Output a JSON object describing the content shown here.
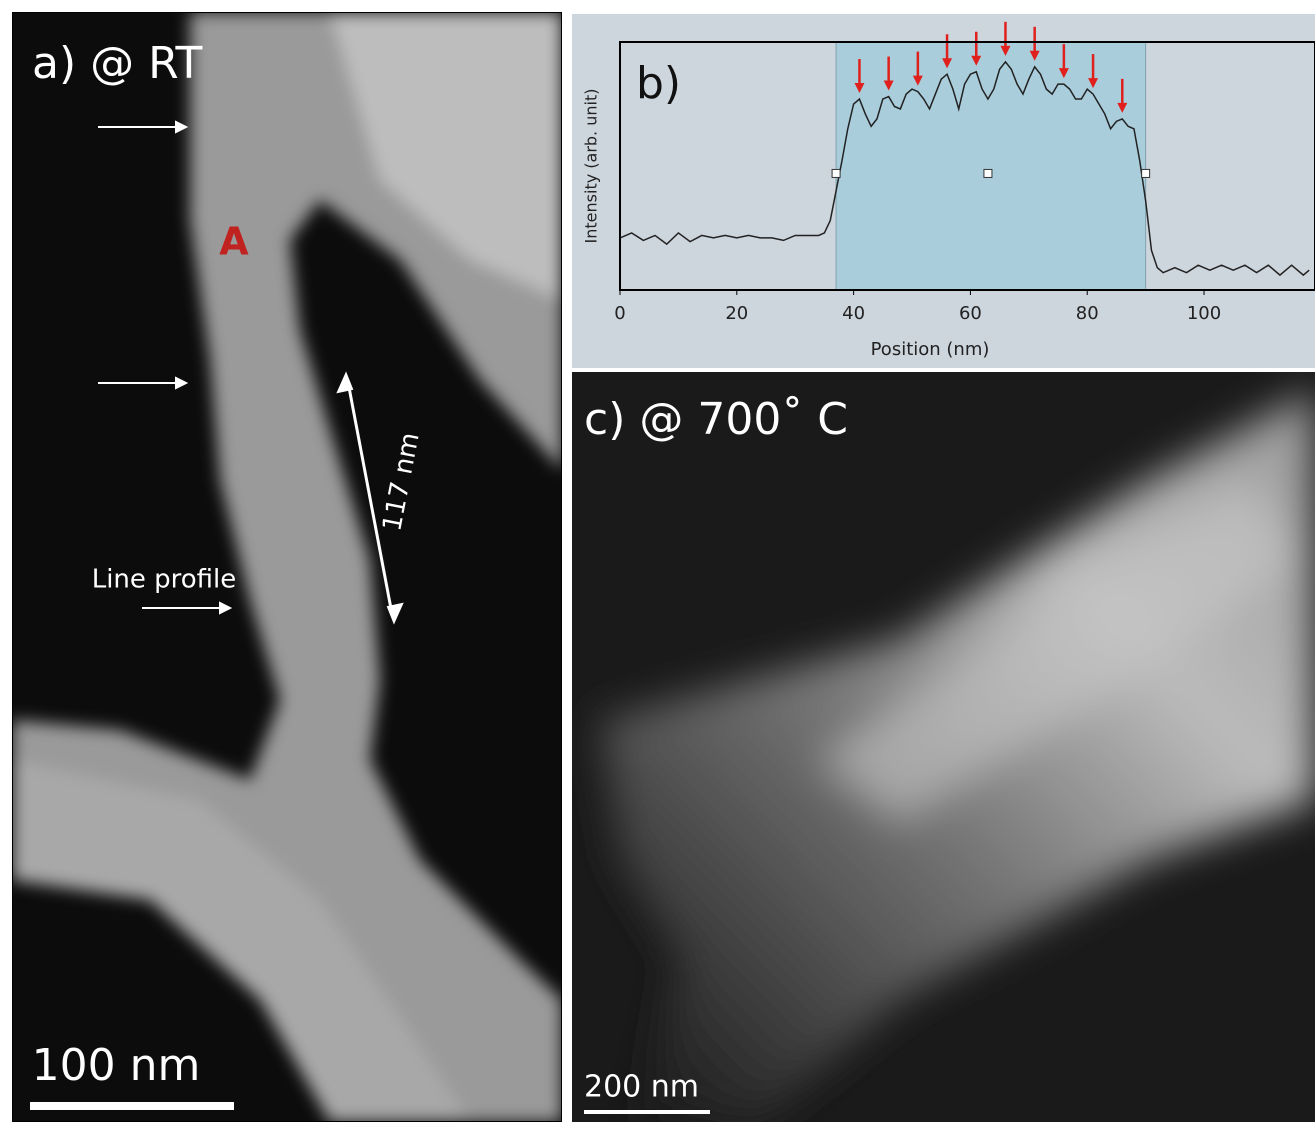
{
  "panels": {
    "a": {
      "label": "a) @ RT",
      "region": "A",
      "length": "117 nm",
      "line_profile": "Line profile",
      "scale_bar": "100 nm"
    },
    "c": {
      "label": "c) @ 700˚ C",
      "scale_bar": "200 nm"
    }
  },
  "chart_data": {
    "type": "line",
    "label": "b)",
    "x_label": "Position (nm)",
    "y_label": "Intensity (arb. unit)",
    "x": [
      0,
      2,
      4,
      6,
      8,
      10,
      12,
      14,
      16,
      18,
      20,
      22,
      24,
      26,
      28,
      30,
      32,
      34,
      35,
      36,
      37,
      38,
      39,
      40,
      41,
      42,
      43,
      44,
      45,
      46,
      47,
      48,
      49,
      50,
      51,
      52,
      53,
      54,
      55,
      56,
      57,
      58,
      59,
      60,
      61,
      62,
      63,
      64,
      65,
      66,
      67,
      68,
      69,
      70,
      71,
      72,
      73,
      74,
      75,
      76,
      77,
      78,
      79,
      80,
      81,
      82,
      83,
      84,
      85,
      86,
      87,
      88,
      89,
      90,
      91,
      92,
      93,
      95,
      97,
      99,
      101,
      103,
      105,
      107,
      109,
      111,
      113,
      115,
      117,
      118
    ],
    "series": [
      {
        "color": "#222222",
        "values": [
          21,
          23,
          20,
          22,
          18.5,
          23,
          19.5,
          22,
          21,
          22,
          21,
          22,
          21,
          21,
          20,
          22,
          22,
          22,
          23,
          28,
          40,
          52,
          65,
          75,
          77,
          71,
          66,
          69,
          77,
          78,
          74,
          73,
          79,
          81,
          80,
          77,
          73,
          79,
          85,
          87,
          81,
          73,
          83,
          87,
          88,
          81,
          77,
          81,
          89,
          92,
          89,
          83,
          79,
          85,
          90,
          87,
          81,
          79,
          83,
          83,
          81,
          77,
          77,
          81,
          79,
          75,
          71,
          65,
          68,
          69,
          66,
          65,
          52,
          36,
          16,
          9,
          7,
          9,
          7,
          10,
          8,
          10,
          8,
          10,
          7,
          10,
          6,
          10,
          6,
          8
        ]
      }
    ],
    "shade": {
      "color": "#a9cddb",
      "x": [
        37,
        90
      ]
    },
    "markers": {
      "x": [
        37,
        63,
        90
      ],
      "values": [
        47,
        47,
        47
      ]
    },
    "arrows": {
      "color": "#e0201c",
      "x": [
        41,
        46,
        51,
        56,
        61,
        66,
        71,
        76,
        81,
        86
      ]
    },
    "xlim": [
      0,
      119
    ],
    "ylim": [
      0,
      100
    ],
    "xticks": [
      0,
      20,
      40,
      60,
      80,
      100
    ]
  }
}
